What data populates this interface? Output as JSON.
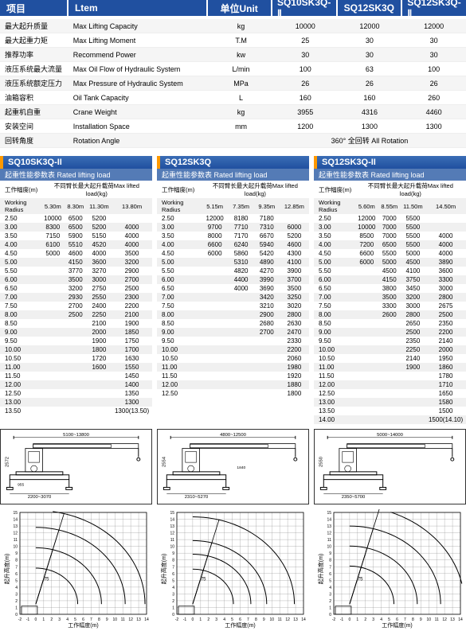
{
  "header": {
    "label": "项目",
    "item": "Ltem",
    "unit": "单位Unit",
    "models": [
      "SQ10SK3Q-Ⅱ",
      "SQ12SK3Q",
      "SQ12SK3Q-Ⅱ"
    ]
  },
  "specs": [
    {
      "cn": "最大起升质量",
      "en": "Max Lifting Capacity",
      "unit": "kg",
      "v": [
        "10000",
        "12000",
        "12000"
      ]
    },
    {
      "cn": "最大起重力矩",
      "en": "Max Lifting Moment",
      "unit": "T.M",
      "v": [
        "25",
        "30",
        "30"
      ]
    },
    {
      "cn": "推荐功率",
      "en": "Recommend Power",
      "unit": "kw",
      "v": [
        "30",
        "30",
        "30"
      ]
    },
    {
      "cn": "液压系统最大流量",
      "en": "Max Oil Flow of Hydraulic System",
      "unit": "L/min",
      "v": [
        "100",
        "63",
        "100"
      ]
    },
    {
      "cn": "液压系统额定压力",
      "en": "Max Pressure of Hydraulic System",
      "unit": "MPa",
      "v": [
        "26",
        "26",
        "26"
      ]
    },
    {
      "cn": "油箱容积",
      "en": "Oil Tank Capacity",
      "unit": "L",
      "v": [
        "160",
        "160",
        "260"
      ]
    },
    {
      "cn": "起重机自重",
      "en": "Crane Weight",
      "unit": "kg",
      "v": [
        "3955",
        "4316",
        "4460"
      ]
    },
    {
      "cn": "安装空间",
      "en": "Installation Space",
      "unit": "mm",
      "v": [
        "1200",
        "1300",
        "1300"
      ]
    },
    {
      "cn": "回转角度",
      "en": "Rotation Angle",
      "unit": "",
      "merged": "360° 全回转 All Rotation"
    }
  ],
  "loadBlocks": [
    {
      "title": "SQ10SK3Q-II",
      "sub": "起重性能参数表 Rated lifting load",
      "hdr1": "工作幅度(m)",
      "hdr2": "不同臂长最大起升载荷Max lifted load(kg)",
      "wr": "Working Radius",
      "arms": [
        "5.30m",
        "8.30m",
        "11.30m",
        "13.80m"
      ],
      "rows": [
        [
          "2.50",
          "10000",
          "6500",
          "5200",
          ""
        ],
        [
          "3.00",
          "8300",
          "6500",
          "5200",
          "4000"
        ],
        [
          "3.50",
          "7150",
          "5900",
          "5150",
          "4000"
        ],
        [
          "4.00",
          "6100",
          "5510",
          "4520",
          "4000"
        ],
        [
          "4.50",
          "5000",
          "4600",
          "4000",
          "3500"
        ],
        [
          "5.00",
          "",
          "4150",
          "3600",
          "3200"
        ],
        [
          "5.50",
          "",
          "3770",
          "3270",
          "2900"
        ],
        [
          "6.00",
          "",
          "3500",
          "3000",
          "2700"
        ],
        [
          "6.50",
          "",
          "3200",
          "2750",
          "2500"
        ],
        [
          "7.00",
          "",
          "2930",
          "2550",
          "2300"
        ],
        [
          "7.50",
          "",
          "2700",
          "2400",
          "2200"
        ],
        [
          "8.00",
          "",
          "2500",
          "2250",
          "2100"
        ],
        [
          "8.50",
          "",
          "",
          "2100",
          "1900"
        ],
        [
          "9.00",
          "",
          "",
          "2000",
          "1850"
        ],
        [
          "9.50",
          "",
          "",
          "1900",
          "1750"
        ],
        [
          "10.00",
          "",
          "",
          "1800",
          "1700"
        ],
        [
          "10.50",
          "",
          "",
          "1720",
          "1630"
        ],
        [
          "11.00",
          "",
          "",
          "1600",
          "1550"
        ],
        [
          "11.50",
          "",
          "",
          "",
          "1450"
        ],
        [
          "12.00",
          "",
          "",
          "",
          "1400"
        ],
        [
          "12.50",
          "",
          "",
          "",
          "1350"
        ],
        [
          "13.00",
          "",
          "",
          "",
          "1300"
        ],
        [
          "13.50",
          "",
          "",
          "",
          "1300(13.50)"
        ]
      ]
    },
    {
      "title": "SQ12SK3Q",
      "sub": "起重性能参数表 Rated lifting load",
      "hdr1": "工作幅度(m)",
      "hdr2": "不同臂长最大起升载荷Max lifted load(kg)",
      "wr": "Working Radius",
      "arms": [
        "5.15m",
        "7.35m",
        "9.35m",
        "12.85m"
      ],
      "rows": [
        [
          "2.50",
          "12000",
          "8180",
          "7180",
          ""
        ],
        [
          "3.00",
          "9700",
          "7710",
          "7310",
          "6000"
        ],
        [
          "3.50",
          "8000",
          "7170",
          "6670",
          "5200"
        ],
        [
          "4.00",
          "6600",
          "6240",
          "5940",
          "4600"
        ],
        [
          "4.50",
          "6000",
          "5860",
          "5420",
          "4300"
        ],
        [
          "5.00",
          "",
          "5310",
          "4890",
          "4100"
        ],
        [
          "5.50",
          "",
          "4820",
          "4270",
          "3900"
        ],
        [
          "6.00",
          "",
          "4400",
          "3990",
          "3700"
        ],
        [
          "6.50",
          "",
          "4000",
          "3690",
          "3500"
        ],
        [
          "7.00",
          "",
          "",
          "3420",
          "3250"
        ],
        [
          "7.50",
          "",
          "",
          "3210",
          "3020"
        ],
        [
          "8.00",
          "",
          "",
          "2900",
          "2800"
        ],
        [
          "8.50",
          "",
          "",
          "2680",
          "2630"
        ],
        [
          "9.00",
          "",
          "",
          "2700",
          "2470"
        ],
        [
          "9.50",
          "",
          "",
          "",
          "2330"
        ],
        [
          "10.00",
          "",
          "",
          "",
          "2200"
        ],
        [
          "10.50",
          "",
          "",
          "",
          "2060"
        ],
        [
          "11.00",
          "",
          "",
          "",
          "1980"
        ],
        [
          "11.50",
          "",
          "",
          "",
          "1920"
        ],
        [
          "12.00",
          "",
          "",
          "",
          "1880"
        ],
        [
          "12.50",
          "",
          "",
          "",
          "1800"
        ]
      ]
    },
    {
      "title": "SQ12SK3Q-II",
      "sub": "起重性能参数表 Rated lifting load",
      "hdr1": "工作幅度(m)",
      "hdr2": "不同臂长最大起升载荷Max lifted load(kg)",
      "wr": "Working Radius",
      "arms": [
        "5.60m",
        "8.55m",
        "11.50m",
        "14.50m"
      ],
      "rows": [
        [
          "2.50",
          "12000",
          "7000",
          "5500",
          ""
        ],
        [
          "3.00",
          "10000",
          "7000",
          "5500",
          ""
        ],
        [
          "3.50",
          "8500",
          "7000",
          "5500",
          "4000"
        ],
        [
          "4.00",
          "7200",
          "6500",
          "5500",
          "4000"
        ],
        [
          "4.50",
          "6600",
          "5500",
          "5000",
          "4000"
        ],
        [
          "5.00",
          "6000",
          "5000",
          "4500",
          "3890"
        ],
        [
          "5.50",
          "",
          "4500",
          "4100",
          "3600"
        ],
        [
          "6.00",
          "",
          "4150",
          "3750",
          "3300"
        ],
        [
          "6.50",
          "",
          "3800",
          "3450",
          "3000"
        ],
        [
          "7.00",
          "",
          "3500",
          "3200",
          "2800"
        ],
        [
          "7.50",
          "",
          "3300",
          "3000",
          "2675"
        ],
        [
          "8.00",
          "",
          "2600",
          "2800",
          "2500"
        ],
        [
          "8.50",
          "",
          "",
          "2650",
          "2350"
        ],
        [
          "9.00",
          "",
          "",
          "2500",
          "2200"
        ],
        [
          "9.50",
          "",
          "",
          "2350",
          "2140"
        ],
        [
          "10.00",
          "",
          "",
          "2250",
          "2000"
        ],
        [
          "10.50",
          "",
          "",
          "2140",
          "1950"
        ],
        [
          "11.00",
          "",
          "",
          "1900",
          "1860"
        ],
        [
          "11.50",
          "",
          "",
          "",
          "1780"
        ],
        [
          "12.00",
          "",
          "",
          "",
          "1710"
        ],
        [
          "12.50",
          "",
          "",
          "",
          "1650"
        ],
        [
          "13.00",
          "",
          "",
          "",
          "1580"
        ],
        [
          "13.50",
          "",
          "",
          "",
          "1500"
        ],
        [
          "14.00",
          "",
          "",
          "",
          "1500(14.10)"
        ]
      ]
    }
  ],
  "diagrams": [
    {
      "wspan": "5100~13800",
      "h": "2572",
      "base": "955",
      "out": "2200~3070"
    },
    {
      "wspan": "4800~12500",
      "h": "2554",
      "hh": "1840",
      "base": "",
      "out": "2310~5270"
    },
    {
      "wspan": "5000~14000",
      "h": "2550",
      "base": "",
      "out": "2350~5700"
    }
  ],
  "charts": {
    "ylabel": "起升高度(m)",
    "xlabel": "工作幅度(m)",
    "ymax": 15,
    "xmin": -2,
    "xmax": 14,
    "curves": [
      {
        "arcs": [
          5.3,
          8.3,
          11.3,
          13.8
        ]
      },
      {
        "arcs": [
          5.15,
          7.35,
          9.35,
          12.85
        ]
      },
      {
        "arcs": [
          5.6,
          8.55,
          11.5,
          14.5
        ]
      }
    ],
    "grid_color": "#888",
    "curve_color": "#000"
  }
}
